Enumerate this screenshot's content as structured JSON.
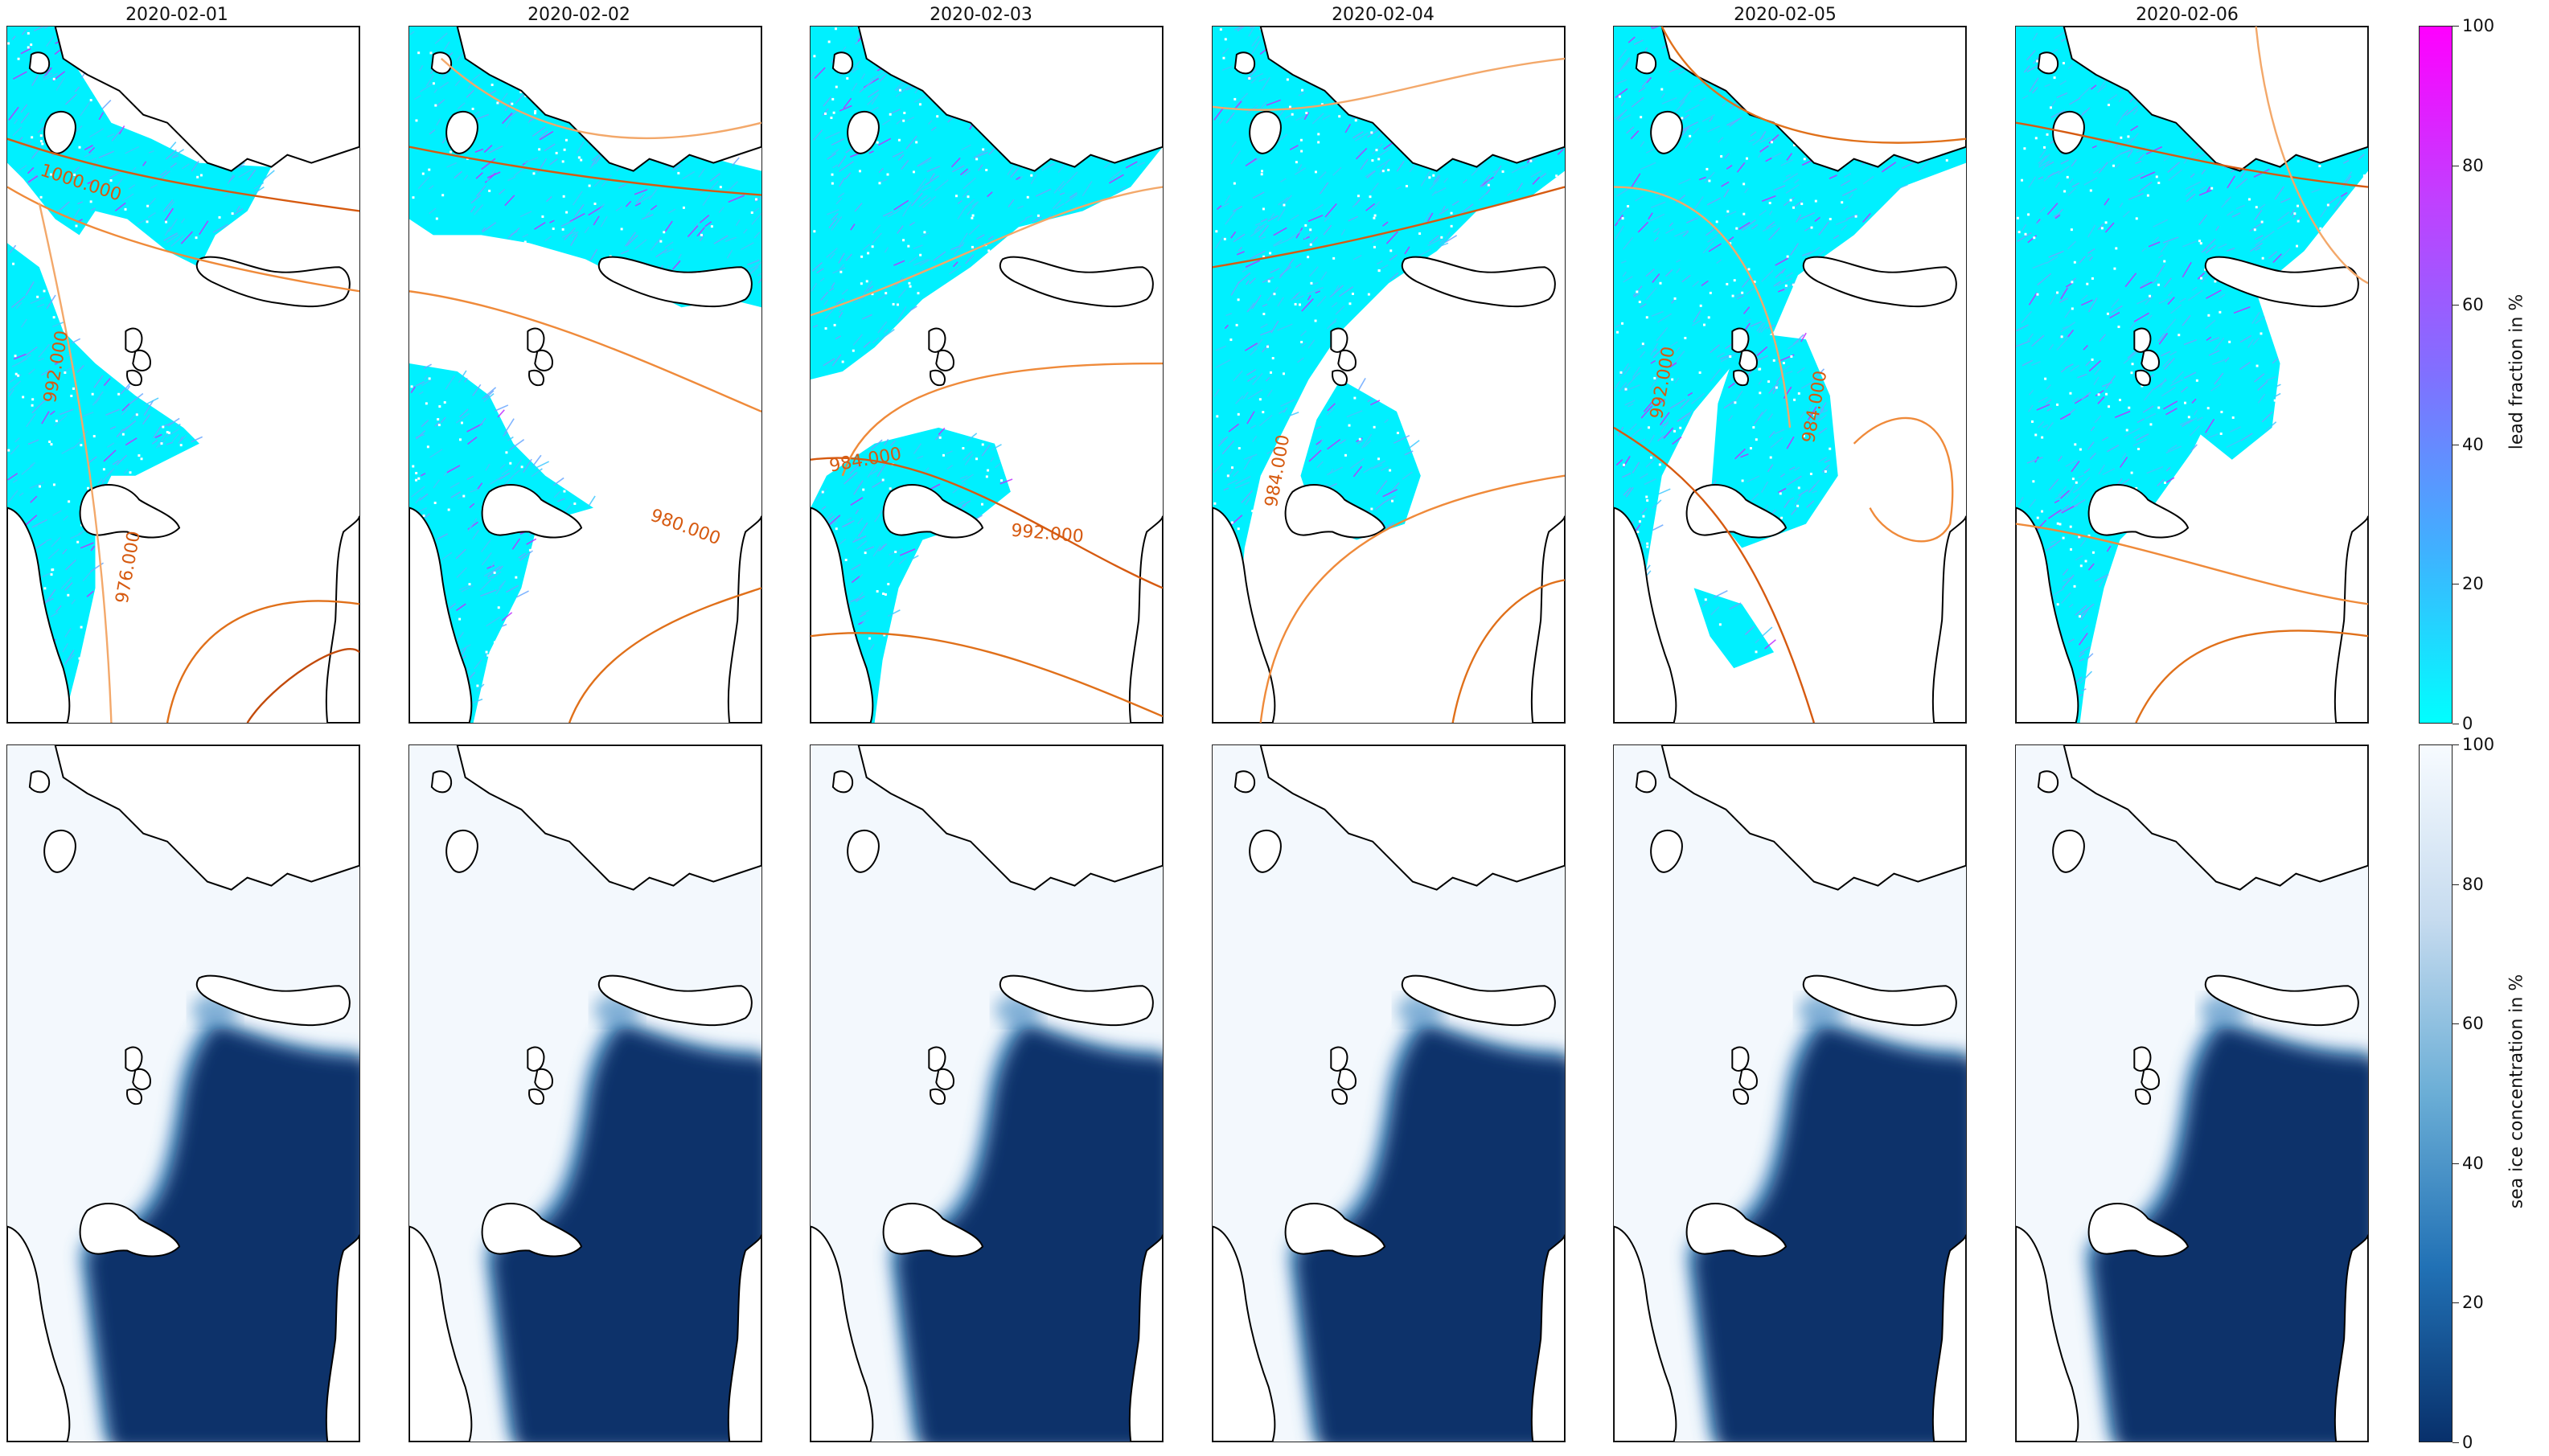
{
  "dates": [
    "2020-02-01",
    "2020-02-02",
    "2020-02-03",
    "2020-02-04",
    "2020-02-05",
    "2020-02-06"
  ],
  "contour_labels": [
    [
      "1000.000",
      "992.000",
      "976.000"
    ],
    [
      "980.000"
    ],
    [
      "984.000",
      "992.000"
    ],
    [
      "984.000"
    ],
    [
      "992.000",
      "984.000"
    ],
    []
  ],
  "colorbars": {
    "lead": {
      "label": "lead fraction in %",
      "ticks": [
        "0",
        "20",
        "40",
        "60",
        "80",
        "100"
      ],
      "colors": [
        "#00ffff",
        "#ff00ff"
      ]
    },
    "ice": {
      "label": "sea ice concentration in %",
      "ticks": [
        "0",
        "20",
        "40",
        "60",
        "80",
        "100"
      ],
      "colors": [
        "#08306b",
        "#f7fbff"
      ]
    }
  },
  "colors": {
    "lead_low": "#00f0ff",
    "lead_high": "#c030ff",
    "open_water": "#08306b",
    "ice": "#f3f8fd",
    "contour": "#e0701a",
    "coast": "#000000"
  }
}
